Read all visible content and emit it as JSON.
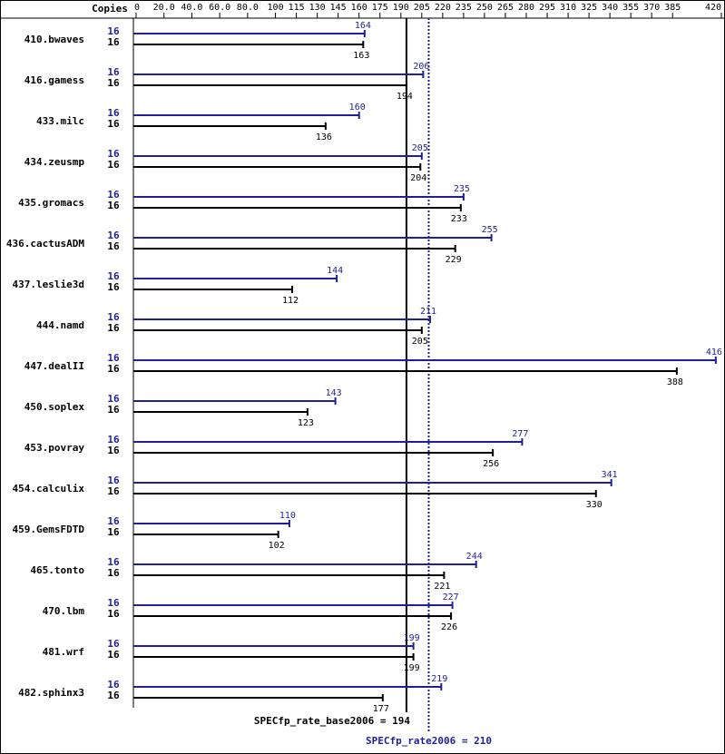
{
  "chart_data": {
    "type": "bar",
    "orientation": "horizontal",
    "copies_label": "Copies",
    "categories": [
      "410.bwaves",
      "416.gamess",
      "433.milc",
      "434.zeusmp",
      "435.gromacs",
      "436.cactusADM",
      "437.leslie3d",
      "444.namd",
      "447.dealII",
      "450.soplex",
      "453.povray",
      "454.calculix",
      "459.GemsFDTD",
      "465.tonto",
      "470.lbm",
      "481.wrf",
      "482.sphinx3"
    ],
    "series": [
      {
        "name": "SPECfp_rate2006",
        "color": "#1f1f9a",
        "copies": [
          16,
          16,
          16,
          16,
          16,
          16,
          16,
          16,
          16,
          16,
          16,
          16,
          16,
          16,
          16,
          16,
          16
        ],
        "values": [
          164,
          206,
          160,
          205,
          235,
          255,
          144,
          211,
          416,
          143,
          277,
          341,
          110,
          244,
          227,
          199,
          219
        ]
      },
      {
        "name": "SPECfp_rate_base2006",
        "color": "#000000",
        "copies": [
          16,
          16,
          16,
          16,
          16,
          16,
          16,
          16,
          16,
          16,
          16,
          16,
          16,
          16,
          16,
          16,
          16
        ],
        "values": [
          163,
          194,
          136,
          204,
          233,
          229,
          112,
          205,
          388,
          123,
          256,
          330,
          102,
          221,
          226,
          199,
          177
        ]
      }
    ],
    "reference_lines": [
      {
        "label": "SPECfp_rate_base2006 = 194",
        "value": 194,
        "color": "#000000",
        "style": "solid"
      },
      {
        "label": "SPECfp_rate2006 = 210",
        "value": 210,
        "color": "#1f1f9a",
        "style": "dotted"
      }
    ],
    "xlim": [
      0,
      420
    ],
    "xticks": [
      0,
      {
        "value": 20,
        "label": "20.0"
      },
      {
        "value": 40,
        "label": "40.0"
      },
      {
        "value": 60,
        "label": "60.0"
      },
      {
        "value": 80,
        "label": "80.0"
      },
      100,
      115,
      130,
      145,
      160,
      175,
      190,
      205,
      220,
      235,
      250,
      265,
      280,
      295,
      310,
      325,
      340,
      355,
      370,
      385,
      420
    ]
  }
}
